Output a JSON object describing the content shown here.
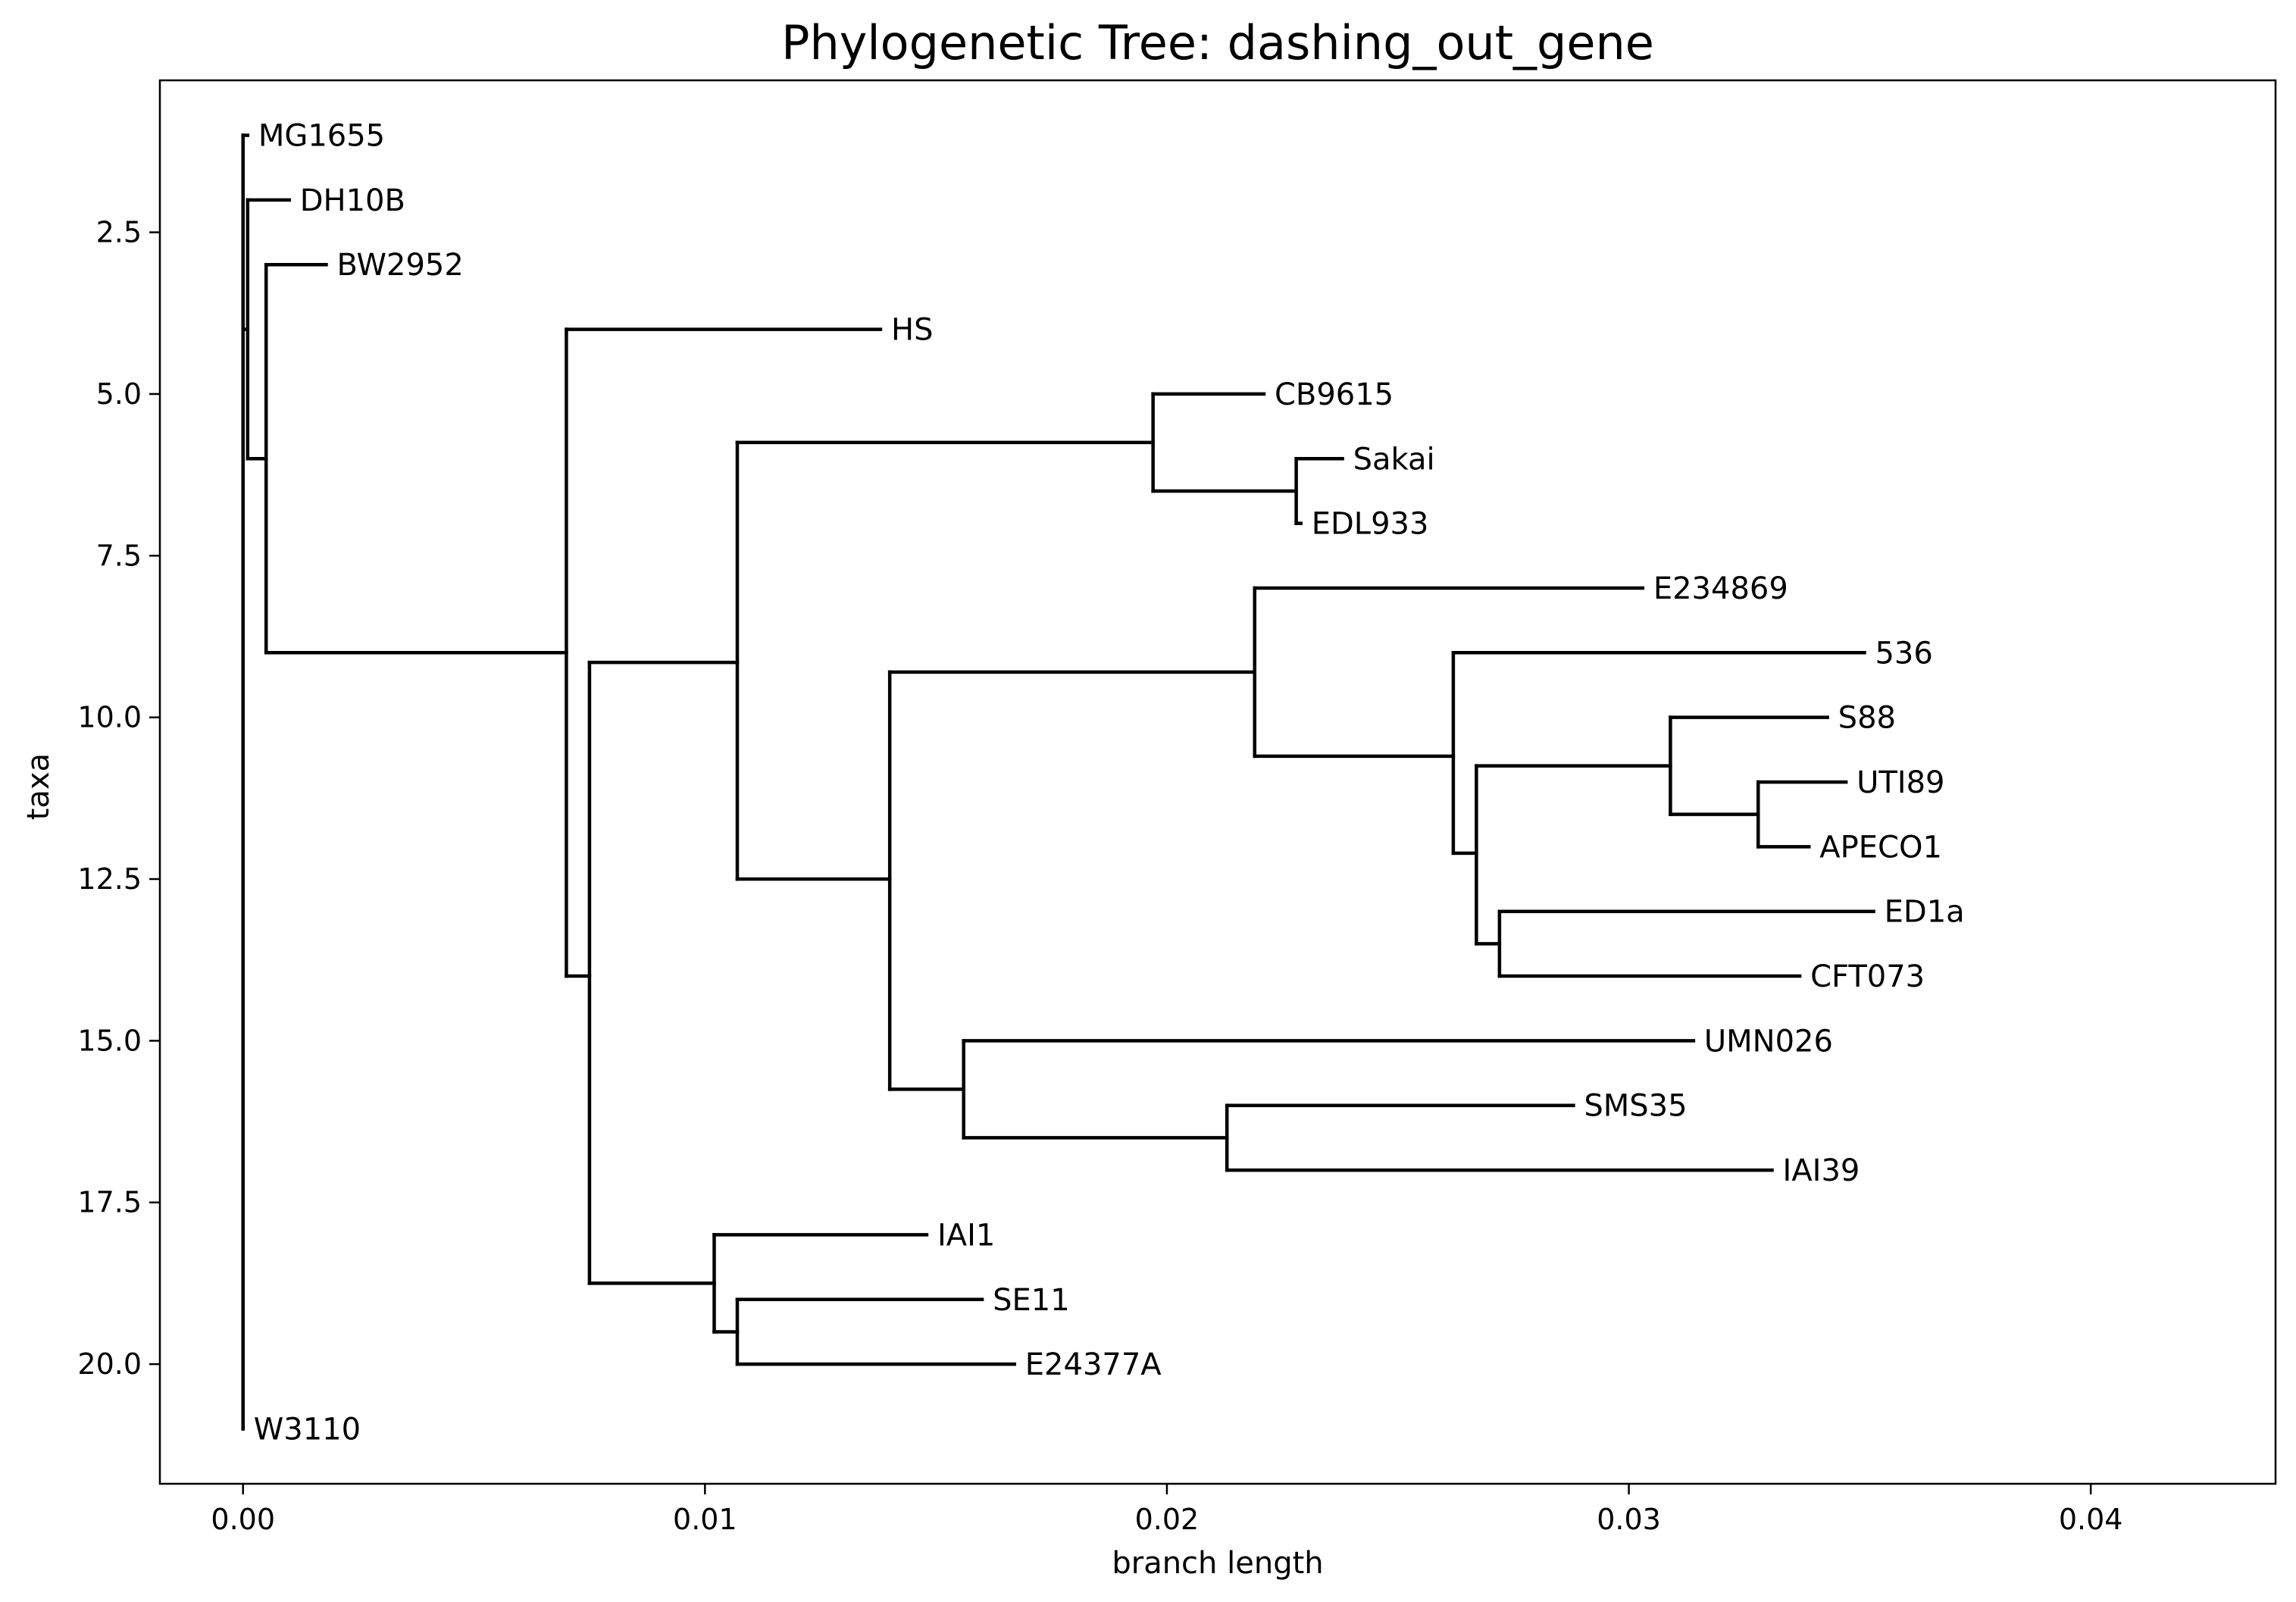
{
  "chart_data": {
    "type": "tree",
    "title": "Phylogenetic Tree: dashing_out_gene",
    "xlabel": "branch length",
    "ylabel": "taxa",
    "xlim": [
      -0.0018,
      0.044
    ],
    "ylim": [
      21.85,
      0.15
    ],
    "xticks": [
      0.0,
      0.01,
      0.02,
      0.03,
      0.04
    ],
    "xtick_labels": [
      "0.00",
      "0.01",
      "0.02",
      "0.03",
      "0.04"
    ],
    "yticks": [
      2.5,
      5.0,
      7.5,
      10.0,
      12.5,
      15.0,
      17.5,
      20.0
    ],
    "ytick_labels": [
      "2.5",
      "5.0",
      "7.5",
      "10.0",
      "12.5",
      "15.0",
      "17.5",
      "20.0"
    ],
    "grid": false,
    "line_color": "#000000",
    "nodes": [
      {
        "id": "root",
        "parent": null,
        "x": 0.0,
        "y": 11.0
      },
      {
        "id": "n1",
        "parent": "root",
        "x": 0.0001,
        "y": 4.0
      },
      {
        "id": "n2",
        "parent": "n1",
        "x": 0.0005,
        "y": 6.0
      },
      {
        "id": "n3",
        "parent": "n2",
        "x": 0.007,
        "y": 9.0
      },
      {
        "id": "n4",
        "parent": "n3",
        "x": 0.0075,
        "y": 14.0
      },
      {
        "id": "n5",
        "parent": "n4",
        "x": 0.0107,
        "y": 9.15
      },
      {
        "id": "n6",
        "parent": "n5",
        "x": 0.0197,
        "y": 5.75
      },
      {
        "id": "n7",
        "parent": "n6",
        "x": 0.0228,
        "y": 6.5
      },
      {
        "id": "n8",
        "parent": "n5",
        "x": 0.014,
        "y": 12.5
      },
      {
        "id": "n9",
        "parent": "n8",
        "x": 0.0219,
        "y": 9.3
      },
      {
        "id": "n10",
        "parent": "n9",
        "x": 0.0262,
        "y": 10.6
      },
      {
        "id": "n11",
        "parent": "n10",
        "x": 0.0267,
        "y": 12.1
      },
      {
        "id": "n12",
        "parent": "n11",
        "x": 0.0309,
        "y": 10.75
      },
      {
        "id": "n13",
        "parent": "n12",
        "x": 0.0328,
        "y": 11.5
      },
      {
        "id": "n14",
        "parent": "n11",
        "x": 0.0272,
        "y": 13.5
      },
      {
        "id": "n15",
        "parent": "n8",
        "x": 0.0156,
        "y": 15.75
      },
      {
        "id": "n16",
        "parent": "n15",
        "x": 0.0213,
        "y": 16.5
      },
      {
        "id": "n17",
        "parent": "n4",
        "x": 0.0102,
        "y": 18.75
      },
      {
        "id": "n18",
        "parent": "n17",
        "x": 0.0107,
        "y": 19.5
      }
    ],
    "leaves": [
      {
        "name": "MG1655",
        "parent": "root",
        "x": 0.0001,
        "y": 1.0
      },
      {
        "name": "DH10B",
        "parent": "n1",
        "x": 0.001,
        "y": 2.0
      },
      {
        "name": "BW2952",
        "parent": "n2",
        "x": 0.0018,
        "y": 3.0
      },
      {
        "name": "HS",
        "parent": "n3",
        "x": 0.0138,
        "y": 4.0
      },
      {
        "name": "CB9615",
        "parent": "n6",
        "x": 0.0221,
        "y": 5.0
      },
      {
        "name": "Sakai",
        "parent": "n7",
        "x": 0.0238,
        "y": 6.0
      },
      {
        "name": "EDL933",
        "parent": "n7",
        "x": 0.0229,
        "y": 7.0
      },
      {
        "name": "E234869",
        "parent": "n9",
        "x": 0.0303,
        "y": 8.0
      },
      {
        "name": "536",
        "parent": "n10",
        "x": 0.0351,
        "y": 9.0
      },
      {
        "name": "S88",
        "parent": "n12",
        "x": 0.0343,
        "y": 10.0
      },
      {
        "name": "UTI89",
        "parent": "n13",
        "x": 0.0347,
        "y": 11.0
      },
      {
        "name": "APECO1",
        "parent": "n13",
        "x": 0.0339,
        "y": 12.0
      },
      {
        "name": "ED1a",
        "parent": "n14",
        "x": 0.0353,
        "y": 13.0
      },
      {
        "name": "CFT073",
        "parent": "n14",
        "x": 0.0337,
        "y": 14.0
      },
      {
        "name": "UMN026",
        "parent": "n15",
        "x": 0.0314,
        "y": 15.0
      },
      {
        "name": "SMS35",
        "parent": "n16",
        "x": 0.0288,
        "y": 16.0
      },
      {
        "name": "IAI39",
        "parent": "n16",
        "x": 0.0331,
        "y": 17.0
      },
      {
        "name": "IAI1",
        "parent": "n17",
        "x": 0.0148,
        "y": 18.0
      },
      {
        "name": "SE11",
        "parent": "n18",
        "x": 0.016,
        "y": 19.0
      },
      {
        "name": "E24377A",
        "parent": "n18",
        "x": 0.0167,
        "y": 20.0
      },
      {
        "name": "W3110",
        "parent": "root",
        "x": 0.0,
        "y": 21.0
      }
    ]
  }
}
